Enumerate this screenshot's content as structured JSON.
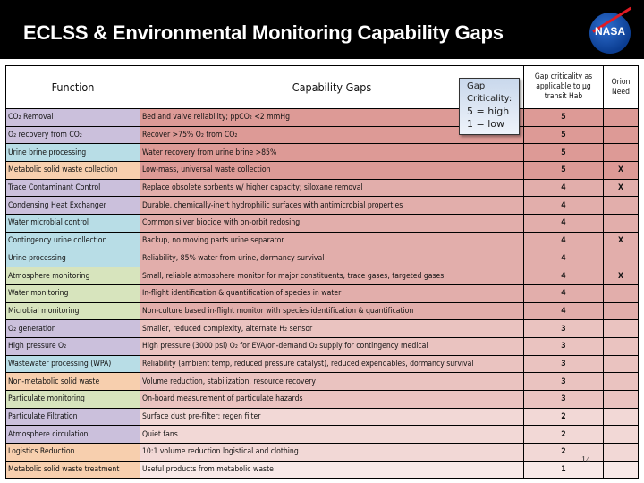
{
  "header": {
    "title": "ECLSS & Environmental Monitoring Capability Gaps",
    "logo_text": "NASA"
  },
  "table": {
    "columns": {
      "function": "Function",
      "gaps": "Capability Gaps",
      "criticality": "Gap criticality as applicable to μg transit Hab",
      "orion": "Orion Need"
    },
    "rows": [
      {
        "function": "CO₂ Removal",
        "gap": "Bed and valve reliability; ppCO₂ <2 mmHg",
        "crit": "5",
        "orion": "",
        "fcolor": "#cbc0dc",
        "gcolor": "#dd9a96"
      },
      {
        "function": "O₂ recovery from CO₂",
        "gap": "Recover >75% O₂ from CO₂",
        "crit": "5",
        "orion": "",
        "fcolor": "#cbc0dc",
        "gcolor": "#dd9a96"
      },
      {
        "function": "Urine brine processing",
        "gap": "Water recovery from urine brine >85%",
        "crit": "5",
        "orion": "",
        "fcolor": "#b8dde6",
        "gcolor": "#dd9a96"
      },
      {
        "function": "Metabolic solid waste collection",
        "gap": "Low-mass, universal waste collection",
        "crit": "5",
        "orion": "X",
        "fcolor": "#f7cfae",
        "gcolor": "#dd9a96"
      },
      {
        "function": "Trace Contaminant Control",
        "gap": "Replace obsolete sorbents w/ higher capacity; siloxane removal",
        "crit": "4",
        "orion": "X",
        "fcolor": "#cbc0dc",
        "gcolor": "#e2aeab"
      },
      {
        "function": "Condensing Heat Exchanger",
        "gap": "Durable, chemically-inert hydrophilic surfaces with antimicrobial properties",
        "crit": "4",
        "orion": "",
        "fcolor": "#cbc0dc",
        "gcolor": "#e2aeab"
      },
      {
        "function": "Water microbial control",
        "gap": "Common silver biocide with on-orbit redosing",
        "crit": "4",
        "orion": "",
        "fcolor": "#b8dde6",
        "gcolor": "#e2aeab"
      },
      {
        "function": "Contingency urine collection",
        "gap": "Backup, no moving parts urine separator",
        "crit": "4",
        "orion": "X",
        "fcolor": "#b8dde6",
        "gcolor": "#e2aeab"
      },
      {
        "function": "Urine processing",
        "gap": "Reliability, 85% water from urine, dormancy survival",
        "crit": "4",
        "orion": "",
        "fcolor": "#b8dde6",
        "gcolor": "#e2aeab"
      },
      {
        "function": "Atmosphere monitoring",
        "gap": "Small, reliable atmosphere monitor for major constituents, trace gases, targeted gases",
        "crit": "4",
        "orion": "X",
        "fcolor": "#d7e4bd",
        "gcolor": "#e2aeab"
      },
      {
        "function": "Water monitoring",
        "gap": "In-flight identification & quantification of species in water",
        "crit": "4",
        "orion": "",
        "fcolor": "#d7e4bd",
        "gcolor": "#e2aeab"
      },
      {
        "function": "Microbial monitoring",
        "gap": "Non-culture based in-flight monitor with species identification & quantification",
        "crit": "4",
        "orion": "",
        "fcolor": "#d7e4bd",
        "gcolor": "#e2aeab"
      },
      {
        "function": "O₂ generation",
        "gap": "Smaller, reduced complexity, alternate H₂ sensor",
        "crit": "3",
        "orion": "",
        "fcolor": "#cbc0dc",
        "gcolor": "#eac3c0"
      },
      {
        "function": "High pressure O₂",
        "gap": "High pressure (3000 psi) O₂ for EVA/on-demand O₂ supply for contingency medical",
        "crit": "3",
        "orion": "",
        "fcolor": "#cbc0dc",
        "gcolor": "#eac3c0"
      },
      {
        "function": "Wastewater processing (WPA)",
        "gap": "Reliability (ambient temp, reduced pressure catalyst), reduced expendables, dormancy survival",
        "crit": "3",
        "orion": "",
        "fcolor": "#b8dde6",
        "gcolor": "#eac3c0"
      },
      {
        "function": "Non-metabolic solid waste",
        "gap": "Volume reduction, stabilization, resource recovery",
        "crit": "3",
        "orion": "",
        "fcolor": "#f7cfae",
        "gcolor": "#eac3c0"
      },
      {
        "function": "Particulate monitoring",
        "gap": "On-board measurement of particulate hazards",
        "crit": "3",
        "orion": "",
        "fcolor": "#d7e4bd",
        "gcolor": "#eac3c0"
      },
      {
        "function": "Particulate Filtration",
        "gap": "Surface dust pre-filter; regen filter",
        "crit": "2",
        "orion": "",
        "fcolor": "#cbc0dc",
        "gcolor": "#f2d8d6"
      },
      {
        "function": "Atmosphere circulation",
        "gap": "Quiet fans",
        "crit": "2",
        "orion": "",
        "fcolor": "#cbc0dc",
        "gcolor": "#f2d8d6"
      },
      {
        "function": "Logistics Reduction",
        "gap": "10:1 volume reduction logistical and clothing",
        "crit": "2",
        "orion": "",
        "fcolor": "#f7cfae",
        "gcolor": "#f2d8d6"
      },
      {
        "function": "Metabolic solid waste treatment",
        "gap": "Useful products from metabolic waste",
        "crit": "1",
        "orion": "",
        "fcolor": "#f7cfae",
        "gcolor": "#f8e9e8"
      }
    ]
  },
  "legend": {
    "line1": "Gap",
    "line2": "Criticality:",
    "line3": "5 = high",
    "line4": "1 = low"
  },
  "footer": {
    "page_number": "14"
  }
}
